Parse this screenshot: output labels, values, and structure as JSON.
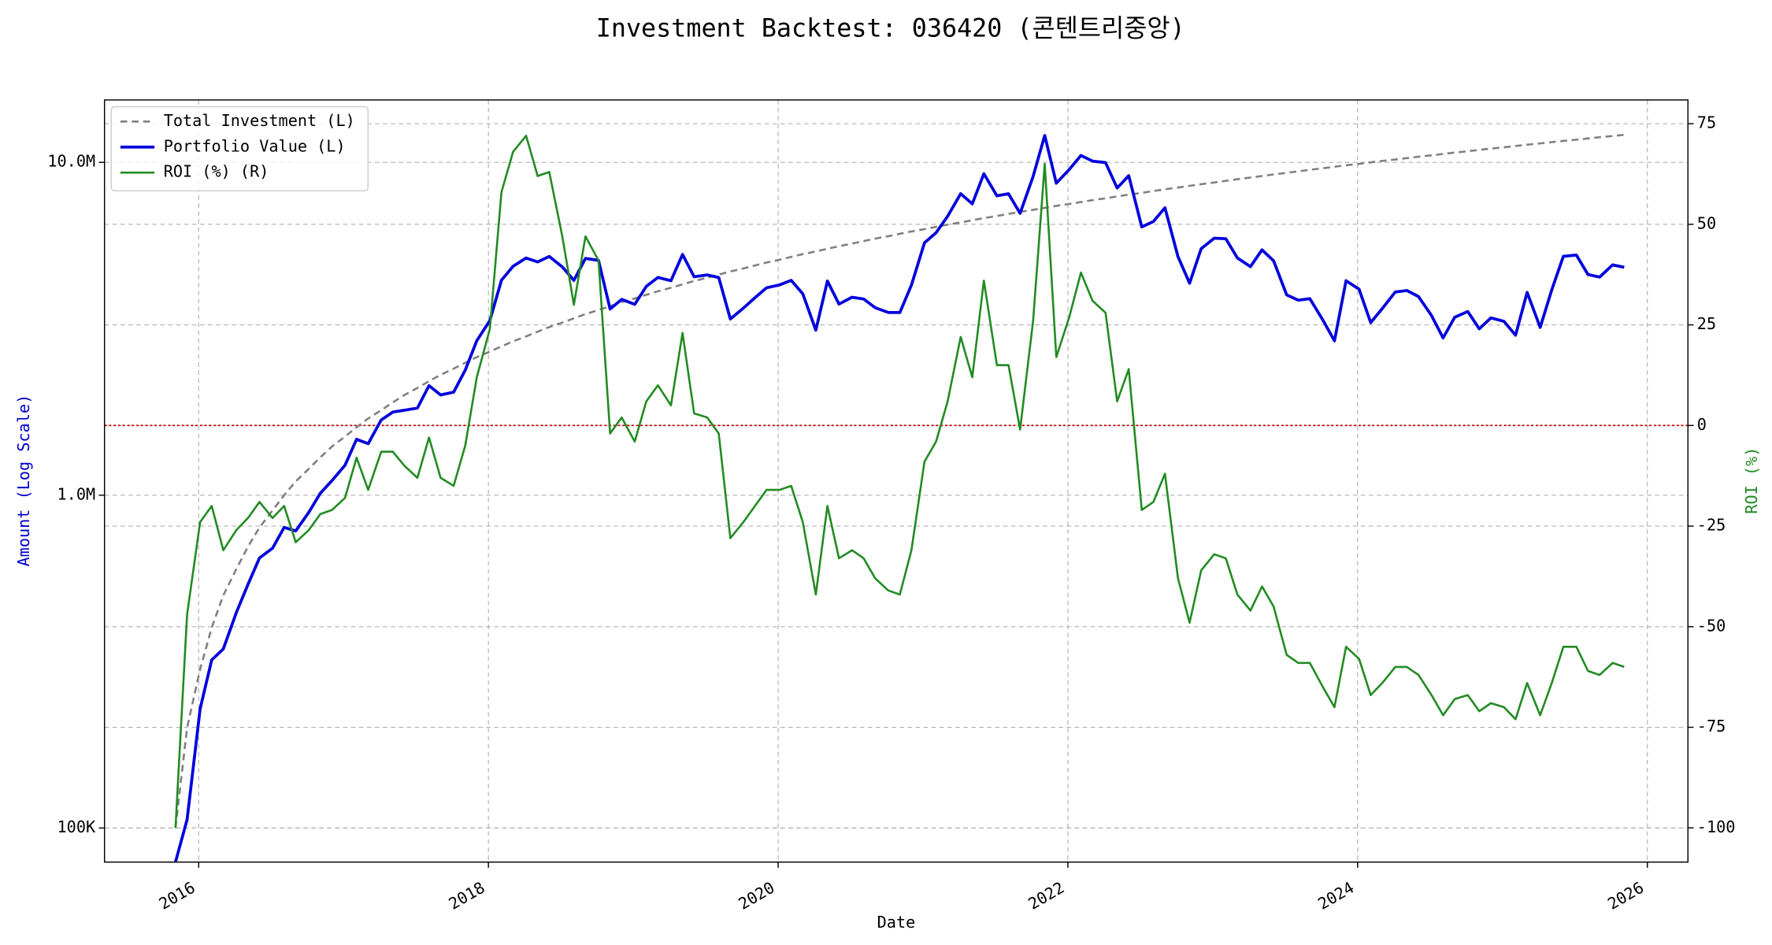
{
  "chart_data": {
    "type": "line",
    "title": "Investment Backtest: 036420 (콘텐트리중앙)",
    "x_label": "Date",
    "y_label": "Amount (Log Scale)",
    "y2_label": "ROI (%)",
    "y_label_color": "#0000cc",
    "y2_label_color": "#228b22",
    "log_y": true,
    "grid": true,
    "legend": "upper-left",
    "reference_line": {
      "axis": "y2",
      "value": 0,
      "color": "#cc0000"
    },
    "xlim": [
      2015.35,
      2026.28
    ],
    "xticks": [
      2016,
      2018,
      2020,
      2022,
      2024,
      2026
    ],
    "ylim": [
      79000,
      15400000
    ],
    "yticks": [
      {
        "value": 100000,
        "label": "100K"
      },
      {
        "value": 1000000,
        "label": "1.0M"
      },
      {
        "value": 10000000,
        "label": "10.0M"
      }
    ],
    "y2lim": [
      -108.5,
      80.9
    ],
    "y2ticks": [
      -100,
      -75,
      -50,
      -25,
      0,
      25,
      50,
      75
    ],
    "x": [
      2015.84,
      2015.92,
      2016.01,
      2016.09,
      2016.17,
      2016.26,
      2016.34,
      2016.42,
      2016.51,
      2016.59,
      2016.67,
      2016.76,
      2016.84,
      2016.92,
      2017.01,
      2017.09,
      2017.17,
      2017.26,
      2017.34,
      2017.42,
      2017.51,
      2017.59,
      2017.67,
      2017.76,
      2017.84,
      2017.92,
      2018.01,
      2018.09,
      2018.17,
      2018.26,
      2018.34,
      2018.42,
      2018.51,
      2018.59,
      2018.67,
      2018.76,
      2018.84,
      2018.92,
      2019.01,
      2019.09,
      2019.17,
      2019.26,
      2019.34,
      2019.42,
      2019.51,
      2019.59,
      2019.67,
      2019.76,
      2019.84,
      2019.92,
      2020.01,
      2020.09,
      2020.17,
      2020.26,
      2020.34,
      2020.42,
      2020.51,
      2020.59,
      2020.67,
      2020.76,
      2020.84,
      2020.92,
      2021.01,
      2021.09,
      2021.17,
      2021.26,
      2021.34,
      2021.42,
      2021.51,
      2021.59,
      2021.67,
      2021.76,
      2021.84,
      2021.92,
      2022.01,
      2022.09,
      2022.17,
      2022.26,
      2022.34,
      2022.42,
      2022.51,
      2022.59,
      2022.67,
      2022.76,
      2022.84,
      2022.92,
      2023.01,
      2023.09,
      2023.17,
      2023.26,
      2023.34,
      2023.42,
      2023.51,
      2023.59,
      2023.67,
      2023.76,
      2023.84,
      2023.92,
      2024.01,
      2024.09,
      2024.17,
      2024.26,
      2024.34,
      2024.42,
      2024.51,
      2024.59,
      2024.67,
      2024.76,
      2024.84,
      2024.92,
      2025.01,
      2025.09,
      2025.17,
      2025.26,
      2025.34,
      2025.42,
      2025.51,
      2025.59,
      2025.67,
      2025.76,
      2025.84
    ],
    "series": [
      {
        "name": "Total Investment (L)",
        "color": "#808080",
        "linestyle": "dashed",
        "axis": "y",
        "values": [
          100000,
          200000,
          300000,
          400000,
          500000,
          600000,
          700000,
          800000,
          900000,
          1000000,
          1100000,
          1200000,
          1300000,
          1400000,
          1500000,
          1600000,
          1700000,
          1800000,
          1900000,
          2000000,
          2100000,
          2200000,
          2300000,
          2400000,
          2500000,
          2600000,
          2700000,
          2800000,
          2900000,
          3000000,
          3100000,
          3200000,
          3300000,
          3400000,
          3500000,
          3600000,
          3700000,
          3800000,
          3900000,
          4000000,
          4100000,
          4200000,
          4300000,
          4400000,
          4500000,
          4600000,
          4700000,
          4800000,
          4900000,
          5000000,
          5100000,
          5200000,
          5300000,
          5400000,
          5500000,
          5600000,
          5700000,
          5800000,
          5900000,
          6000000,
          6100000,
          6200000,
          6300000,
          6400000,
          6500000,
          6600000,
          6700000,
          6800000,
          6900000,
          7000000,
          7100000,
          7200000,
          7300000,
          7400000,
          7500000,
          7600000,
          7700000,
          7800000,
          7900000,
          8000000,
          8100000,
          8200000,
          8300000,
          8400000,
          8500000,
          8600000,
          8700000,
          8800000,
          8900000,
          9000000,
          9100000,
          9200000,
          9300000,
          9400000,
          9500000,
          9600000,
          9700000,
          9800000,
          9900000,
          10000000,
          10100000,
          10200000,
          10300000,
          10400000,
          10500000,
          10600000,
          10700000,
          10800000,
          10900000,
          11000000,
          11100000,
          11200000,
          11300000,
          11400000,
          11500000,
          11600000,
          11700000,
          11800000,
          11900000,
          12000000,
          12100000
        ]
      },
      {
        "name": "Portfolio Value (L)",
        "color": "#0000dd",
        "linestyle": "solid",
        "axis": "y",
        "values": [
          0,
          106000,
          228000,
          320000,
          345000,
          444000,
          539000,
          648000,
          693000,
          800000,
          781000,
          888000,
          1014000,
          1106000,
          1230000,
          1472000,
          1428000,
          1683000,
          1777000,
          1800000,
          1827000,
          2134000,
          2001000,
          2040000,
          2375000,
          2912000,
          3348000,
          4424000,
          4872000,
          5160000,
          5022000,
          5216000,
          4851000,
          4420000,
          5145000,
          5076000,
          3626000,
          3876000,
          3744000,
          4240000,
          4510000,
          4410000,
          5289000,
          4532000,
          4590000,
          4508000,
          3384000,
          3648000,
          3920000,
          4200000,
          4284000,
          4420000,
          4028000,
          3132000,
          4400000,
          3752000,
          3933000,
          3886000,
          3658000,
          3540000,
          3538000,
          4278000,
          5733000,
          6144000,
          6890000,
          8052000,
          7504000,
          9248000,
          7935000,
          8050000,
          7029000,
          9072000,
          12045000,
          8658000,
          9525000,
          10488000,
          10087000,
          9984000,
          8374000,
          9120000,
          6399000,
          6642000,
          7304000,
          5208000,
          4335000,
          5504000,
          5916000,
          5896000,
          5162000,
          4860000,
          5460000,
          5060000,
          3999000,
          3854000,
          3895000,
          3360000,
          2910000,
          4410000,
          4158000,
          3300000,
          3636000,
          4080000,
          4120000,
          3952000,
          3465000,
          2968000,
          3424000,
          3564000,
          3161000,
          3410000,
          3330000,
          3024000,
          4068000,
          3192000,
          4140000,
          5220000,
          5265000,
          4602000,
          4522000,
          4920000,
          4840000
        ]
      },
      {
        "name": "ROI (%) (R)",
        "color": "#228b22",
        "linestyle": "solid",
        "axis": "y2",
        "values": [
          -100,
          -47,
          -24,
          -20,
          -31,
          -26,
          -23,
          -19,
          -23,
          -20,
          -29,
          -26,
          -22,
          -21,
          -18,
          -8,
          -16,
          -6.5,
          -6.5,
          -10,
          -13,
          -3,
          -13,
          -15,
          -5,
          12,
          24,
          58,
          68,
          72,
          62,
          63,
          47,
          30,
          47,
          41,
          -2,
          2,
          -4,
          6,
          10,
          5,
          23,
          3,
          2,
          -2,
          -28,
          -24,
          -20,
          -16,
          -16,
          -15,
          -24,
          -42,
          -20,
          -33,
          -31,
          -33,
          -38,
          -41,
          -42,
          -31,
          -9,
          -4,
          6,
          22,
          12,
          36,
          15,
          15,
          -1,
          26,
          65,
          17,
          27,
          38,
          31,
          28,
          6,
          14,
          -21,
          -19,
          -12,
          -38,
          -49,
          -36,
          -32,
          -33,
          -42,
          -46,
          -40,
          -45,
          -57,
          -59,
          -59,
          -65,
          -70,
          -55,
          -58,
          -67,
          -64,
          -60,
          -60,
          -62,
          -67,
          -72,
          -68,
          -67,
          -71,
          -69,
          -70,
          -73,
          -64,
          -72,
          -64,
          -55,
          -55,
          -61,
          -62,
          -59,
          -60
        ]
      }
    ]
  }
}
